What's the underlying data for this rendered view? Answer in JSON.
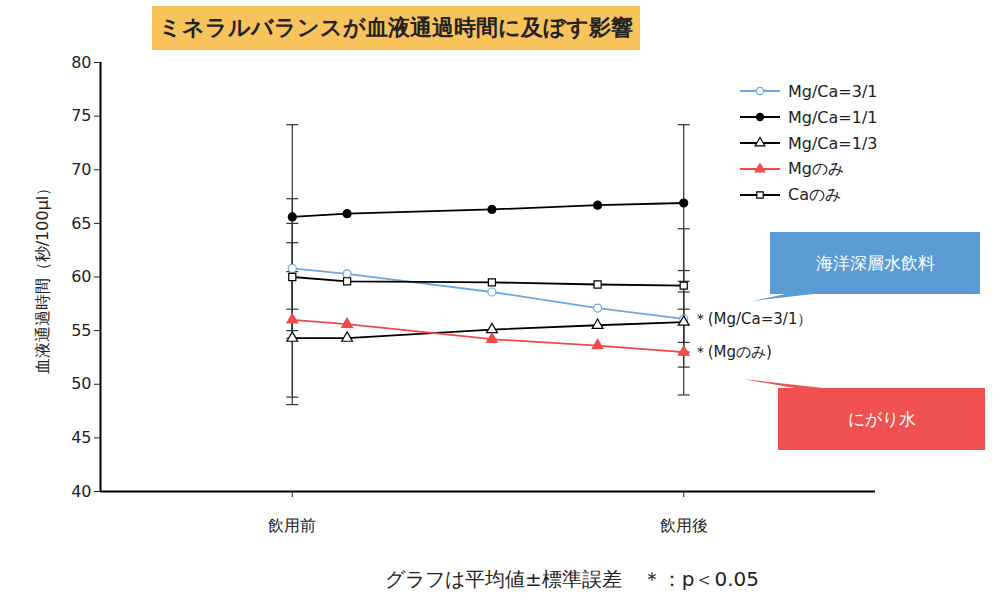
{
  "chart_data": {
    "type": "line",
    "title": "ミネラルバランスが血液通過時間に及ぼす影響",
    "y_label": "血液通過時間（秒/100μl）",
    "x": [
      0,
      0.14,
      0.51,
      0.78,
      1
    ],
    "xlim": [
      -0.49,
      1.49
    ],
    "xticks": [
      {
        "value": 0,
        "label": "飲用前"
      },
      {
        "value": 1,
        "label": "飲用後"
      }
    ],
    "ylim": [
      40,
      80
    ],
    "yticks": [
      40,
      45,
      50,
      55,
      60,
      65,
      70,
      75,
      80
    ],
    "grid": false,
    "legend": "top-right",
    "series": [
      {
        "name": "Mg/Ca=3/1",
        "color": "#6fa8dc",
        "marker": "circle-open",
        "values": [
          60.8,
          60.3,
          58.6,
          57.1,
          56.1
        ],
        "errors": [
          6.5,
          null,
          null,
          null,
          4.5
        ]
      },
      {
        "name": "Mg/Ca=1/1",
        "color": "#000000",
        "marker": "circle",
        "values": [
          65.6,
          65.9,
          66.3,
          66.7,
          66.9
        ],
        "errors": [
          8.6,
          null,
          null,
          null,
          7.3
        ]
      },
      {
        "name": "Mg/Ca=1/3",
        "color": "#000000",
        "marker": "triangle-open",
        "values": [
          54.3,
          54.3,
          55.1,
          55.5,
          55.8
        ],
        "errors": [
          6.2,
          null,
          null,
          null,
          2.8
        ]
      },
      {
        "name": "Mgのみ",
        "color": "#f04a4a",
        "marker": "triangle",
        "values": [
          56.0,
          55.6,
          54.2,
          53.6,
          53.0
        ],
        "errors": [
          7.2,
          null,
          null,
          null,
          4.0
        ]
      },
      {
        "name": "Caのみ",
        "color": "#000000",
        "marker": "square-open",
        "values": [
          60.0,
          59.6,
          59.5,
          59.3,
          59.2
        ],
        "errors": [
          5.0,
          null,
          null,
          null,
          5.3
        ]
      }
    ],
    "annotations": [
      {
        "text": "＊(Mg/Ca=3/1）",
        "series": "Mg/Ca=3/1"
      },
      {
        "text": "＊(Mgのみ)",
        "series": "Mgのみ"
      }
    ],
    "callouts": [
      {
        "text": "海洋深層水飲料",
        "color": "#5b9bd5"
      },
      {
        "text": "にがり水",
        "color": "#f05050"
      }
    ],
    "caption": "グラフは平均値±標準誤差　＊：p＜0.05"
  }
}
